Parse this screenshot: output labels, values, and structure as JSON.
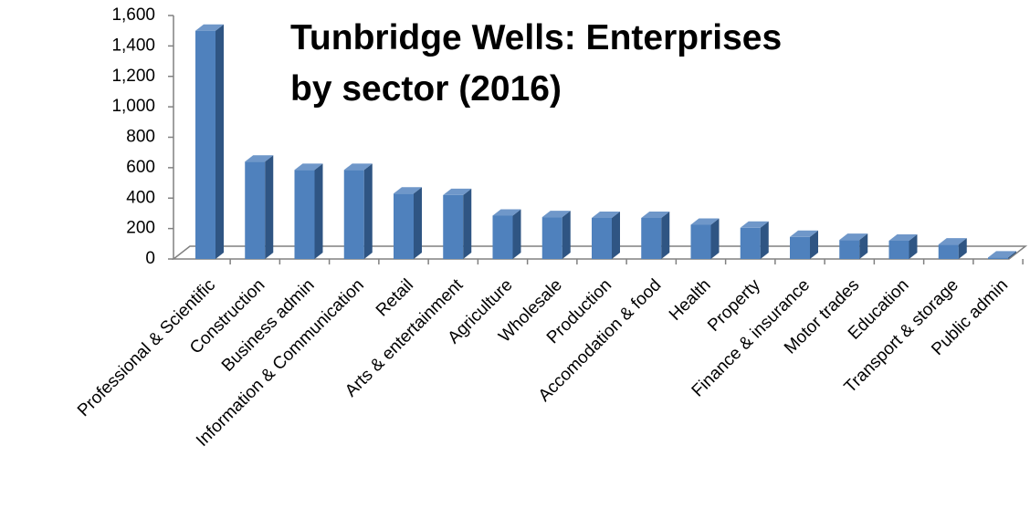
{
  "chart_data": {
    "type": "bar3d",
    "title": "Tunbridge Wells: Enterprises by sector (2016)",
    "categories": [
      "Professional & Scientific",
      "Construction",
      "Business admin",
      "Information & Communication",
      "Retail",
      "Arts & entertainment",
      "Agriculture",
      "Wholesale",
      "Production",
      "Accomodation & food",
      "Health",
      "Property",
      "Finance & insurance",
      "Motor trades",
      "Education",
      "Transport & storage",
      "Public admin"
    ],
    "values": [
      1500,
      640,
      585,
      585,
      430,
      420,
      285,
      275,
      270,
      270,
      225,
      205,
      145,
      125,
      120,
      95,
      10
    ],
    "color": "#4f81bd",
    "ylim": [
      0,
      1600
    ],
    "yticks": [
      0,
      200,
      400,
      600,
      800,
      {
        "value": 1000,
        "label": "1,000"
      },
      {
        "value": 1200,
        "label": "1,200"
      },
      {
        "value": 1400,
        "label": "1,400"
      },
      {
        "value": 1600,
        "label": "1,600"
      }
    ]
  }
}
